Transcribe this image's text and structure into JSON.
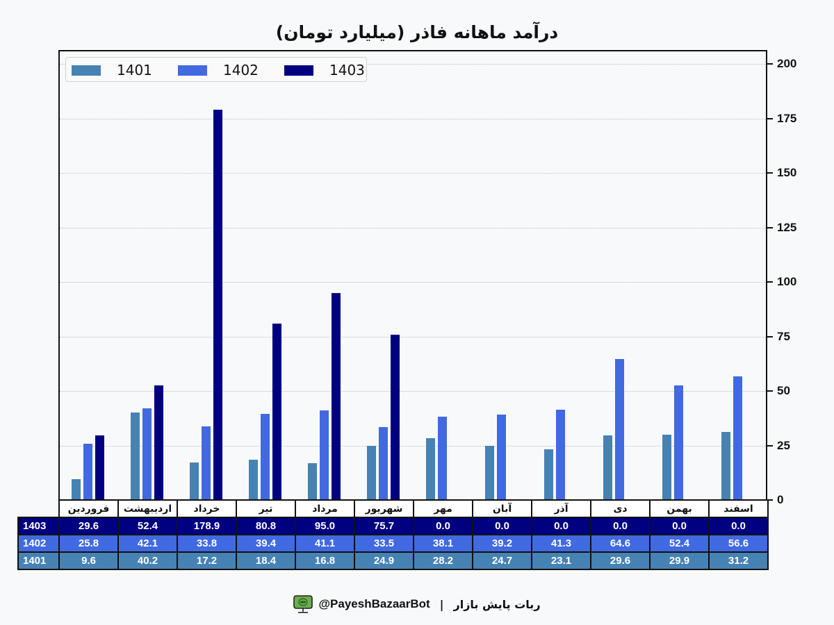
{
  "title": "درآمد ماهانه فاذر (میلیارد تومان)",
  "colors": {
    "1401": "#4682b4",
    "1402": "#4169e1",
    "1403": "#000080",
    "background": "#f8f9fa"
  },
  "legend": [
    {
      "label": "1401",
      "color": "#4682b4"
    },
    {
      "label": "1402",
      "color": "#4169e1"
    },
    {
      "label": "1403",
      "color": "#000080"
    }
  ],
  "yaxis": {
    "ticks": [
      "0",
      "25",
      "50",
      "75",
      "100",
      "125",
      "150",
      "175",
      "200"
    ]
  },
  "table": {
    "months": [
      "فروردین",
      "اردیبهشت",
      "خرداد",
      "تیر",
      "مرداد",
      "شهریور",
      "مهر",
      "آبان",
      "آذر",
      "دی",
      "بهمن",
      "اسفند"
    ],
    "rows": [
      {
        "label": "1403",
        "values": [
          "29.6",
          "52.4",
          "178.9",
          "80.8",
          "95.0",
          "75.7",
          "0.0",
          "0.0",
          "0.0",
          "0.0",
          "0.0",
          "0.0"
        ]
      },
      {
        "label": "1402",
        "values": [
          "25.8",
          "42.1",
          "33.8",
          "39.4",
          "41.1",
          "33.5",
          "38.1",
          "39.2",
          "41.3",
          "64.6",
          "52.4",
          "56.6"
        ]
      },
      {
        "label": "1401",
        "values": [
          "9.6",
          "40.2",
          "17.2",
          "18.4",
          "16.8",
          "24.9",
          "28.2",
          "24.7",
          "23.1",
          "29.6",
          "29.9",
          "31.2"
        ]
      }
    ]
  },
  "footer": {
    "brand": "ربات پایش بازار",
    "separator": "|",
    "handle": "@PayeshBazaarBot"
  },
  "chart_data": {
    "type": "bar",
    "title": "درآمد ماهانه فاذر (میلیارد تومان)",
    "xlabel": "",
    "ylabel": "",
    "ylim": [
      0,
      205
    ],
    "yticks": [
      0,
      25,
      50,
      75,
      100,
      125,
      150,
      175,
      200
    ],
    "grid": "horizontal dotted",
    "legend_position": "upper left",
    "categories": [
      "فروردین",
      "اردیبهشت",
      "خرداد",
      "تیر",
      "مرداد",
      "شهریور",
      "مهر",
      "آبان",
      "آذر",
      "دی",
      "بهمن",
      "اسفند"
    ],
    "series": [
      {
        "name": "1401",
        "color": "#4682b4",
        "values": [
          9.6,
          40.2,
          17.2,
          18.4,
          16.8,
          24.9,
          28.2,
          24.7,
          23.1,
          29.6,
          29.9,
          31.2
        ]
      },
      {
        "name": "1402",
        "color": "#4169e1",
        "values": [
          25.8,
          42.1,
          33.8,
          39.4,
          41.1,
          33.5,
          38.1,
          39.2,
          41.3,
          64.6,
          52.4,
          56.6
        ]
      },
      {
        "name": "1403",
        "color": "#000080",
        "values": [
          29.6,
          52.4,
          178.9,
          80.8,
          95.0,
          75.7,
          0.0,
          0.0,
          0.0,
          0.0,
          0.0,
          0.0
        ]
      }
    ]
  }
}
